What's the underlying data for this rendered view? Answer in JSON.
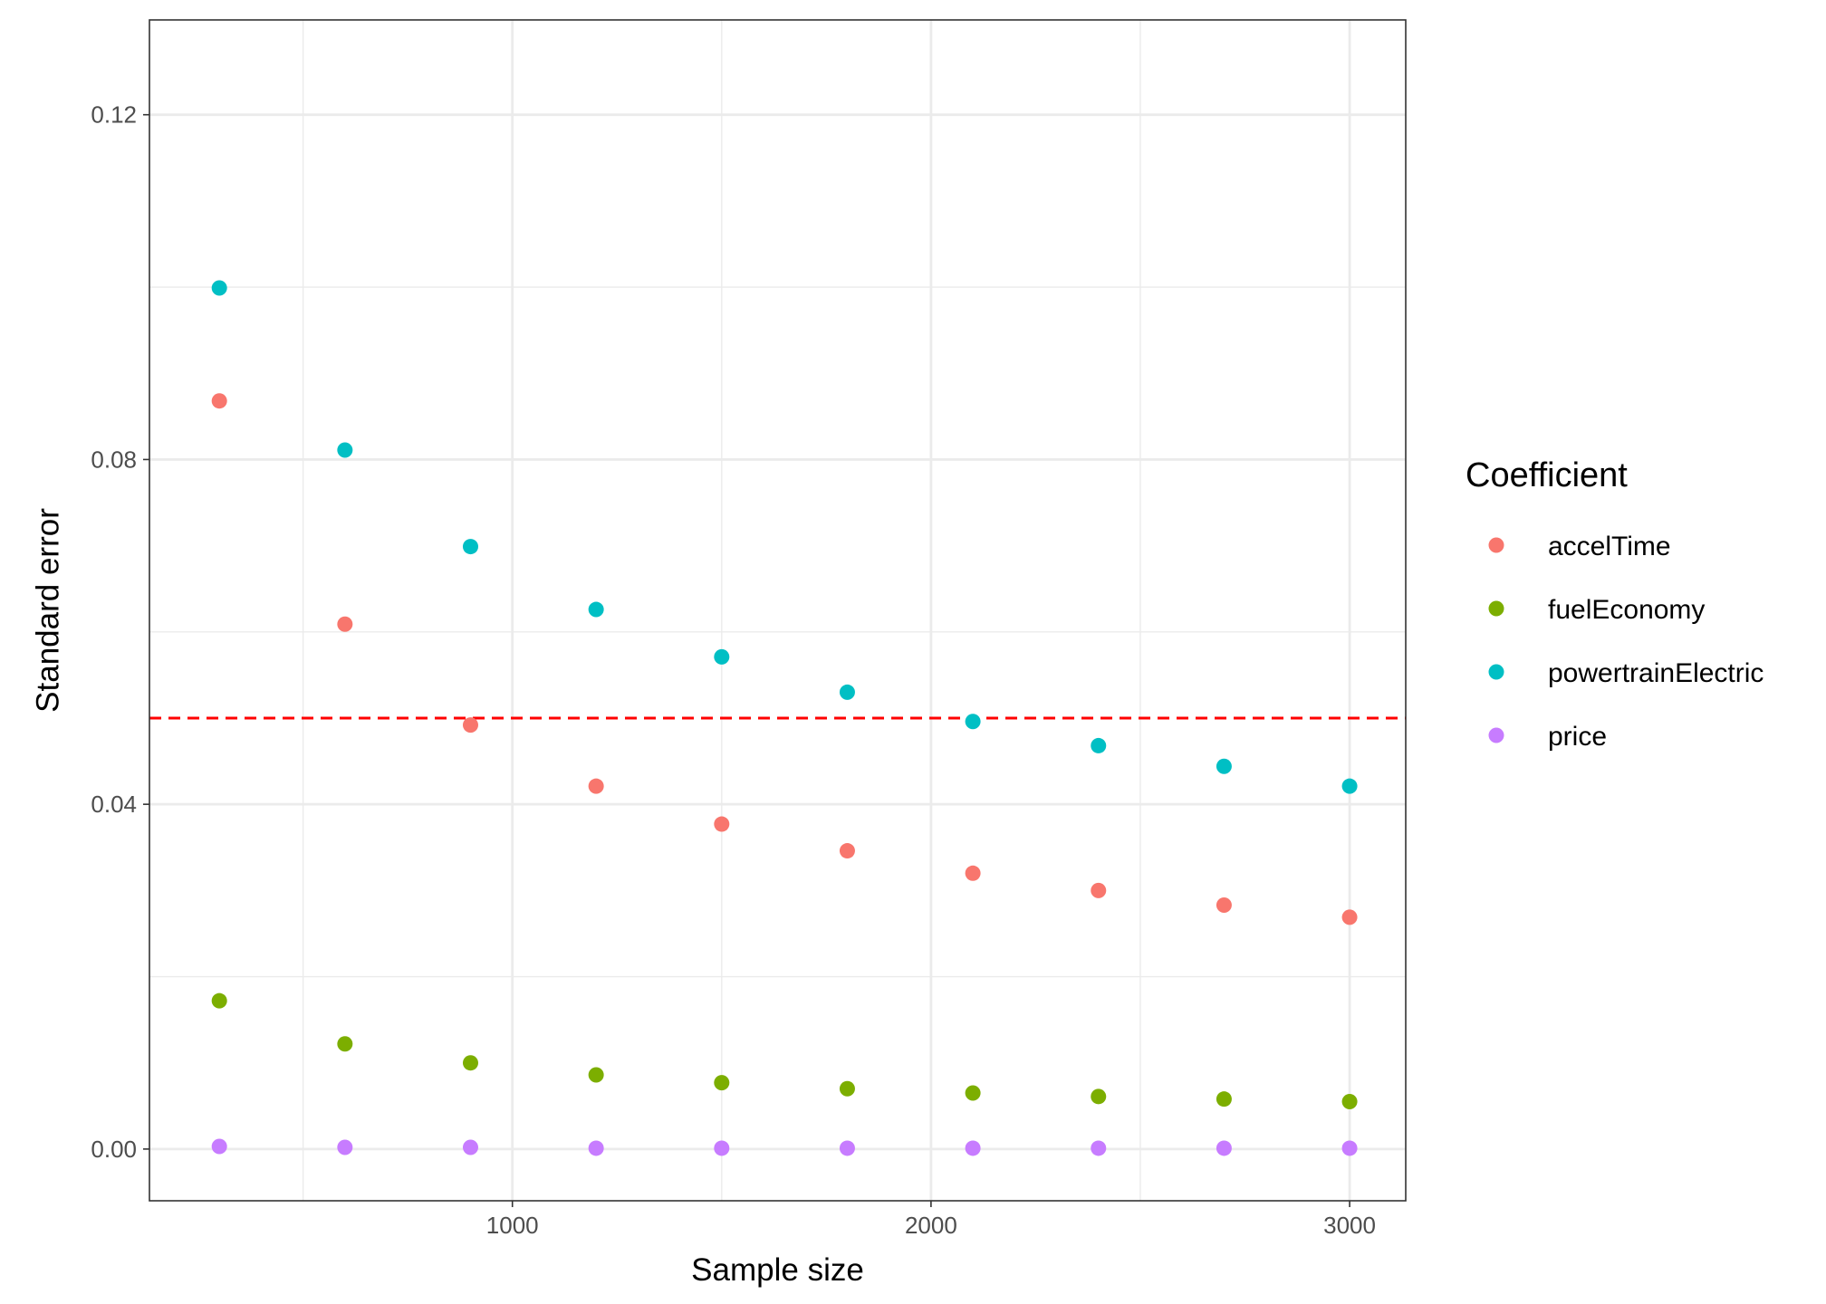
{
  "chart_data": {
    "type": "scatter",
    "title": "",
    "xlabel": "Sample size",
    "ylabel": "Standard error",
    "xlim": [
      133,
      3134
    ],
    "ylim": [
      -0.006,
      0.131
    ],
    "x_ticks": [
      1000,
      2000,
      3000
    ],
    "x_minor": [
      500,
      1500,
      2500
    ],
    "y_ticks": [
      0.0,
      0.04,
      0.08,
      0.12
    ],
    "y_tick_labels": [
      "0.00",
      "0.04",
      "0.08",
      "0.12"
    ],
    "y_minor": [
      0.02,
      0.06,
      0.1
    ],
    "grid": true,
    "reference_line": {
      "y": 0.05,
      "color": "#ff0000",
      "style": "dashed"
    },
    "legend": {
      "title": "Coefficient",
      "position": "right"
    },
    "x": [
      300,
      600,
      900,
      1200,
      1500,
      1800,
      2100,
      2400,
      2700,
      3000
    ],
    "series": [
      {
        "name": "accelTime",
        "color": "#F8766D",
        "values": [
          0.0868,
          0.0609,
          0.0492,
          0.0421,
          0.0377,
          0.0346,
          0.032,
          0.03,
          0.0283,
          0.0269
        ]
      },
      {
        "name": "fuelEconomy",
        "color": "#7CAE00",
        "values": [
          0.0172,
          0.0122,
          0.01,
          0.0086,
          0.0077,
          0.007,
          0.0065,
          0.0061,
          0.0058,
          0.0055
        ]
      },
      {
        "name": "powertrainElectric",
        "color": "#00BFC4",
        "values": [
          0.0999,
          0.0811,
          0.0699,
          0.0626,
          0.0571,
          0.053,
          0.0496,
          0.0468,
          0.0444,
          0.0421
        ]
      },
      {
        "name": "price",
        "color": "#C77CFF",
        "values": [
          0.0003,
          0.0002,
          0.0002,
          0.0001,
          0.0001,
          0.0001,
          0.0001,
          0.0001,
          0.0001,
          0.0001
        ]
      }
    ]
  }
}
